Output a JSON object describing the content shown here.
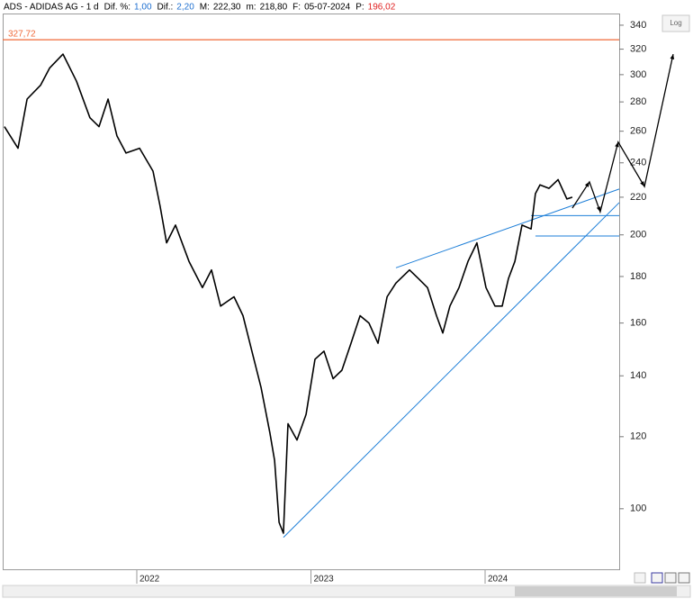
{
  "chart_data": {
    "type": "line",
    "header": {
      "name": "ADS - ADIDAS AG - 1 d",
      "fields": [
        {
          "label": "Dif. %:",
          "value": "1,00",
          "color": "#1e6fd0"
        },
        {
          "label": "Dif.:",
          "value": "2,20",
          "color": "#1e6fd0"
        },
        {
          "label": "M:",
          "value": "222,30",
          "color": "#000000"
        },
        {
          "label": "m:",
          "value": "218,80",
          "color": "#000000"
        },
        {
          "label": "F:",
          "value": "05-07-2024",
          "color": "#000000"
        },
        {
          "label": "P:",
          "value": "196,02",
          "color": "#e02020"
        }
      ]
    },
    "log_button": "Log",
    "log_scale": true,
    "xlim": [
      2021.23,
      2024.77
    ],
    "xticks": [
      2022,
      2023,
      2024
    ],
    "ylim": [
      85.8,
      350.2
    ],
    "yticks": [
      100,
      120,
      140,
      160,
      180,
      200,
      220,
      240,
      260,
      280,
      300,
      320,
      340
    ],
    "series": [
      {
        "color": "#000000",
        "x": [
          2021.24,
          2021.318,
          2021.37,
          2021.447,
          2021.499,
          2021.576,
          2021.654,
          2021.731,
          2021.783,
          2021.835,
          2021.886,
          2021.938,
          2022.016,
          2022.093,
          2022.134,
          2022.171,
          2022.222,
          2022.3,
          2022.377,
          2022.429,
          2022.481,
          2022.558,
          2022.61,
          2022.661,
          2022.713,
          2022.765,
          2022.791,
          2022.817,
          2022.842,
          2022.868,
          2022.92,
          2022.972,
          2023.023,
          2023.075,
          2023.127,
          2023.178,
          2023.23,
          2023.282,
          2023.333,
          2023.385,
          2023.437,
          2023.488,
          2023.566,
          2023.618,
          2023.669,
          2023.721,
          2023.757,
          2023.798,
          2023.85,
          2023.902,
          2023.953,
          2024.005,
          2024.057,
          2024.098,
          2024.134,
          2024.171,
          2024.212,
          2024.264,
          2024.289,
          2024.315,
          2024.367,
          2024.419,
          2024.47,
          2024.501
        ],
        "values": [
          263,
          249,
          282,
          292,
          305,
          316,
          295,
          269,
          263,
          282,
          257,
          246,
          249,
          235,
          215,
          196,
          205,
          187,
          175,
          183,
          167,
          171,
          163,
          149,
          136,
          121,
          113,
          96.6,
          94,
          124,
          119,
          127,
          146,
          149,
          139,
          142,
          152,
          163,
          160,
          152,
          171,
          177,
          183,
          179,
          175,
          163,
          156,
          167,
          175,
          187,
          196,
          175,
          167,
          167,
          179,
          187,
          205,
          203,
          222,
          227,
          225,
          230,
          219,
          220
        ]
      }
    ],
    "reference_lines": [
      {
        "value": 327.72,
        "label": "327,72",
        "color": "#f06a3a"
      }
    ],
    "trendlines": [
      {
        "x": [
          2022.842,
          2024.77
        ],
        "y": [
          93,
          217
        ],
        "color": "#1e7fd8"
      },
      {
        "x": [
          2023.488,
          2024.77
        ],
        "y": [
          184,
          224.6
        ],
        "color": "#1e7fd8"
      },
      {
        "x": [
          2024.264,
          2024.77
        ],
        "y": [
          210,
          210
        ],
        "color": "#1e7fd8"
      },
      {
        "x": [
          2024.289,
          2024.77
        ],
        "y": [
          199.4,
          199.4
        ],
        "color": "#1e7fd8"
      }
    ],
    "projection": {
      "x": [
        2024.501,
        2024.599,
        2024.661,
        2024.764,
        2024.915,
        2025.08
      ],
      "y": [
        214,
        228.7,
        212,
        253,
        226,
        316
      ],
      "color": "#000000"
    }
  }
}
